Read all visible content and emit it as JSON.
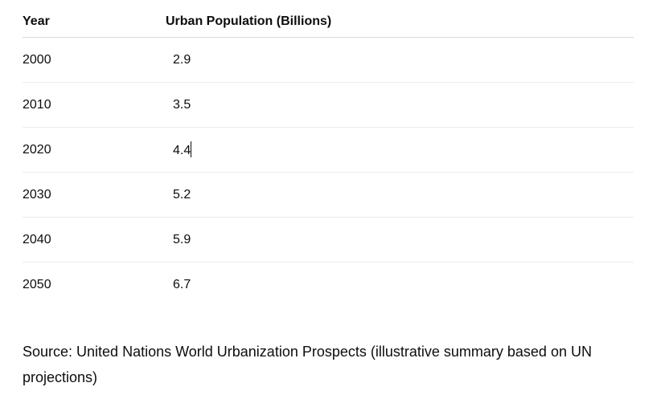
{
  "table": {
    "headers": [
      "Year",
      "Urban Population (Billions)"
    ],
    "rows": [
      {
        "year": "2000",
        "value": "2.9"
      },
      {
        "year": "2010",
        "value": "3.5"
      },
      {
        "year": "2020",
        "value": "4.4"
      },
      {
        "year": "2030",
        "value": "5.2"
      },
      {
        "year": "2040",
        "value": "5.9"
      },
      {
        "year": "2050",
        "value": "6.7"
      }
    ]
  },
  "source_note": "Source: United Nations World Urbanization Prospects (illustrative summary based on UN projections)"
}
